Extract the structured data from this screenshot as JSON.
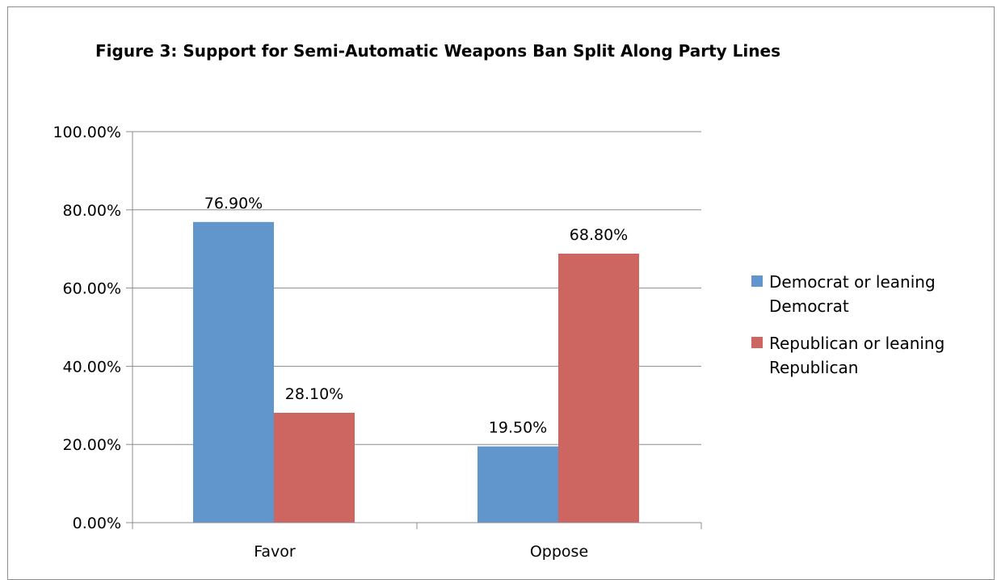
{
  "chart_data": {
    "type": "bar",
    "title": "Figure 3: Support for Semi-Automatic Weapons Ban Split Along Party Lines",
    "xlabel": "",
    "ylabel": "",
    "categories": [
      "Favor",
      "Oppose"
    ],
    "series": [
      {
        "name_lines": [
          "Democrat or leaning",
          "Democrat"
        ],
        "color": "#6096cb",
        "values": [
          76.9,
          19.5
        ],
        "labels": [
          "76.90%",
          "19.50%"
        ]
      },
      {
        "name_lines": [
          "Republican or leaning",
          "Republican"
        ],
        "color": "#cd6560",
        "values": [
          28.1,
          68.8
        ],
        "labels": [
          "28.10%",
          "68.80%"
        ]
      }
    ],
    "ylim": [
      0,
      100
    ],
    "y_ticks": [
      0,
      20,
      40,
      60,
      80,
      100
    ],
    "y_tick_labels": [
      "0.00%",
      "20.00%",
      "40.00%",
      "60.00%",
      "80.00%",
      "100.00%"
    ],
    "grid": true,
    "legend_position": "right"
  }
}
